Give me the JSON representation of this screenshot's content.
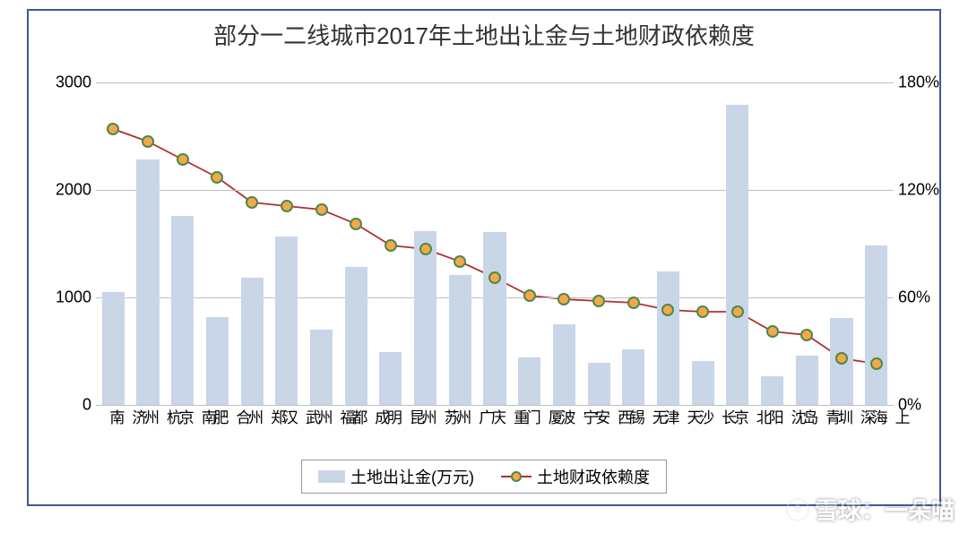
{
  "chart": {
    "type": "bar+line",
    "title": "部分一二线城市2017年土地出让金与土地财政依赖度",
    "title_fontsize": 26,
    "title_color": "#333333",
    "background_color": "#ffffff",
    "border_color": "#3b5998",
    "categories": [
      "济南",
      "杭州",
      "南京",
      "合肥",
      "郑州",
      "武汉",
      "福州",
      "成都",
      "昆明",
      "苏州",
      "广州",
      "重庆",
      "厦门",
      "宁波",
      "西安",
      "无锡",
      "天津",
      "长沙",
      "北京",
      "沈阳",
      "青岛",
      "深圳",
      "上海"
    ],
    "bars": {
      "label": "土地出让金(万元)",
      "values": [
        1050,
        2280,
        1760,
        820,
        1180,
        1570,
        700,
        1280,
        490,
        1620,
        1210,
        1610,
        440,
        750,
        390,
        520,
        1240,
        410,
        2790,
        270,
        460,
        810,
        1480
      ],
      "color": "#c9d6e8",
      "bar_width": 0.65
    },
    "line": {
      "label": "土地财政依赖度",
      "values": [
        154,
        147,
        137,
        127,
        113,
        111,
        109,
        101,
        89,
        87,
        80,
        71,
        61,
        59,
        58,
        57,
        53,
        52,
        52,
        41,
        39,
        26,
        23
      ],
      "line_color": "#b03030",
      "line_width": 1.8,
      "marker_fill": "#f5a74a",
      "marker_stroke": "#4a8a4a",
      "marker_size": 14
    },
    "y_left": {
      "min": 0,
      "max": 3000,
      "step": 1000,
      "ticks": [
        0,
        1000,
        2000,
        3000
      ]
    },
    "y_right": {
      "min": 0,
      "max": 180,
      "step": 60,
      "ticks": [
        0,
        60,
        120,
        180
      ],
      "tick_labels": [
        "0%",
        "60%",
        "120%",
        "180%"
      ]
    },
    "grid_color": "#bfbfbf",
    "axis_label_fontsize": 18,
    "x_label_fontsize": 17,
    "legend_fontsize": 18
  },
  "watermark": {
    "text": "雪球：一朵喵",
    "icon": "❄"
  }
}
